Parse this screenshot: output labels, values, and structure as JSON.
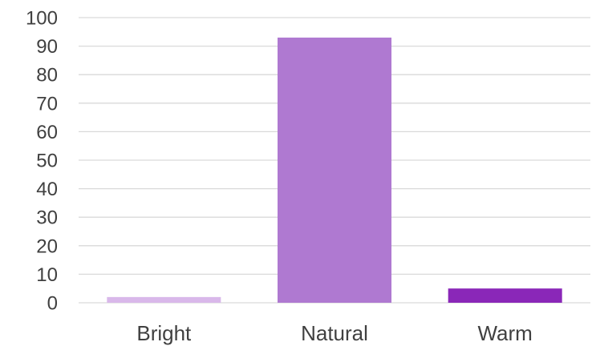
{
  "chart_data": {
    "type": "bar",
    "categories": [
      "Bright",
      "Natural",
      "Warm"
    ],
    "values": [
      2,
      93,
      5
    ],
    "colors": [
      "#d9b8ea",
      "#af79d1",
      "#8a27b8"
    ],
    "title": "",
    "xlabel": "",
    "ylabel": "",
    "ylim": [
      0,
      100
    ],
    "yticks": [
      0,
      10,
      20,
      30,
      40,
      50,
      60,
      70,
      80,
      90,
      100
    ],
    "grid": true,
    "legend": "none"
  },
  "colors": {
    "gridline": "#d9d9d9",
    "axis_text": "#404040"
  }
}
